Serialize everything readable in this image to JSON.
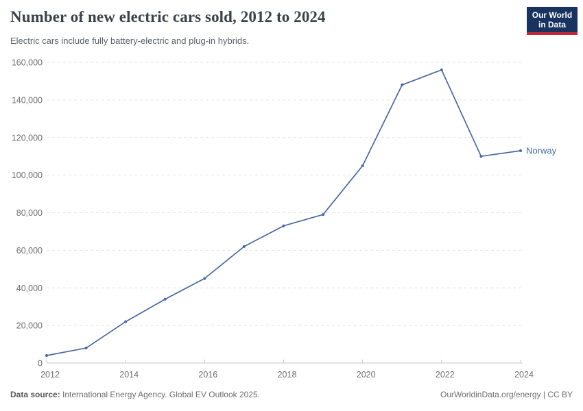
{
  "header": {
    "title": "Number of new electric cars sold, 2012 to 2024",
    "subtitle": "Electric cars include fully battery-electric and plug-in hybrids.",
    "logo_line1": "Our World",
    "logo_line2": "in Data"
  },
  "chart_data": {
    "type": "line",
    "title": "Number of new electric cars sold, 2012 to 2024",
    "subtitle": "Electric cars include fully battery-electric and plug-in hybrids.",
    "x": [
      2012,
      2013,
      2014,
      2015,
      2016,
      2017,
      2018,
      2019,
      2020,
      2021,
      2022,
      2023,
      2024
    ],
    "series": [
      {
        "name": "Norway",
        "color": "#4868a3",
        "values": [
          4000,
          8000,
          22000,
          34000,
          45000,
          62000,
          73000,
          79000,
          105000,
          148000,
          156000,
          110000,
          113000
        ]
      }
    ],
    "xticks": [
      2012,
      2014,
      2016,
      2018,
      2020,
      2022,
      2024
    ],
    "ylim": [
      0,
      160000
    ],
    "ytick_step": 20000,
    "ytick_labels": [
      "0",
      "20,000",
      "40,000",
      "60,000",
      "80,000",
      "100,000",
      "120,000",
      "140,000",
      "160,000"
    ],
    "grid": "horizontal-dashed",
    "legend_position": "end-of-line",
    "end_label": "Norway"
  },
  "footer": {
    "source_label": "Data source:",
    "source_text": " International Energy Agency. Global EV Outlook 2025.",
    "right_text": "OurWorldinData.org/energy | CC BY"
  },
  "colors": {
    "line": "#4868a3",
    "axis": "#c6c6c6",
    "gridline": "#e3e3e3",
    "axis_text": "#6e6e6e",
    "logo_bg": "#18335f",
    "logo_accent": "#c0293a"
  }
}
